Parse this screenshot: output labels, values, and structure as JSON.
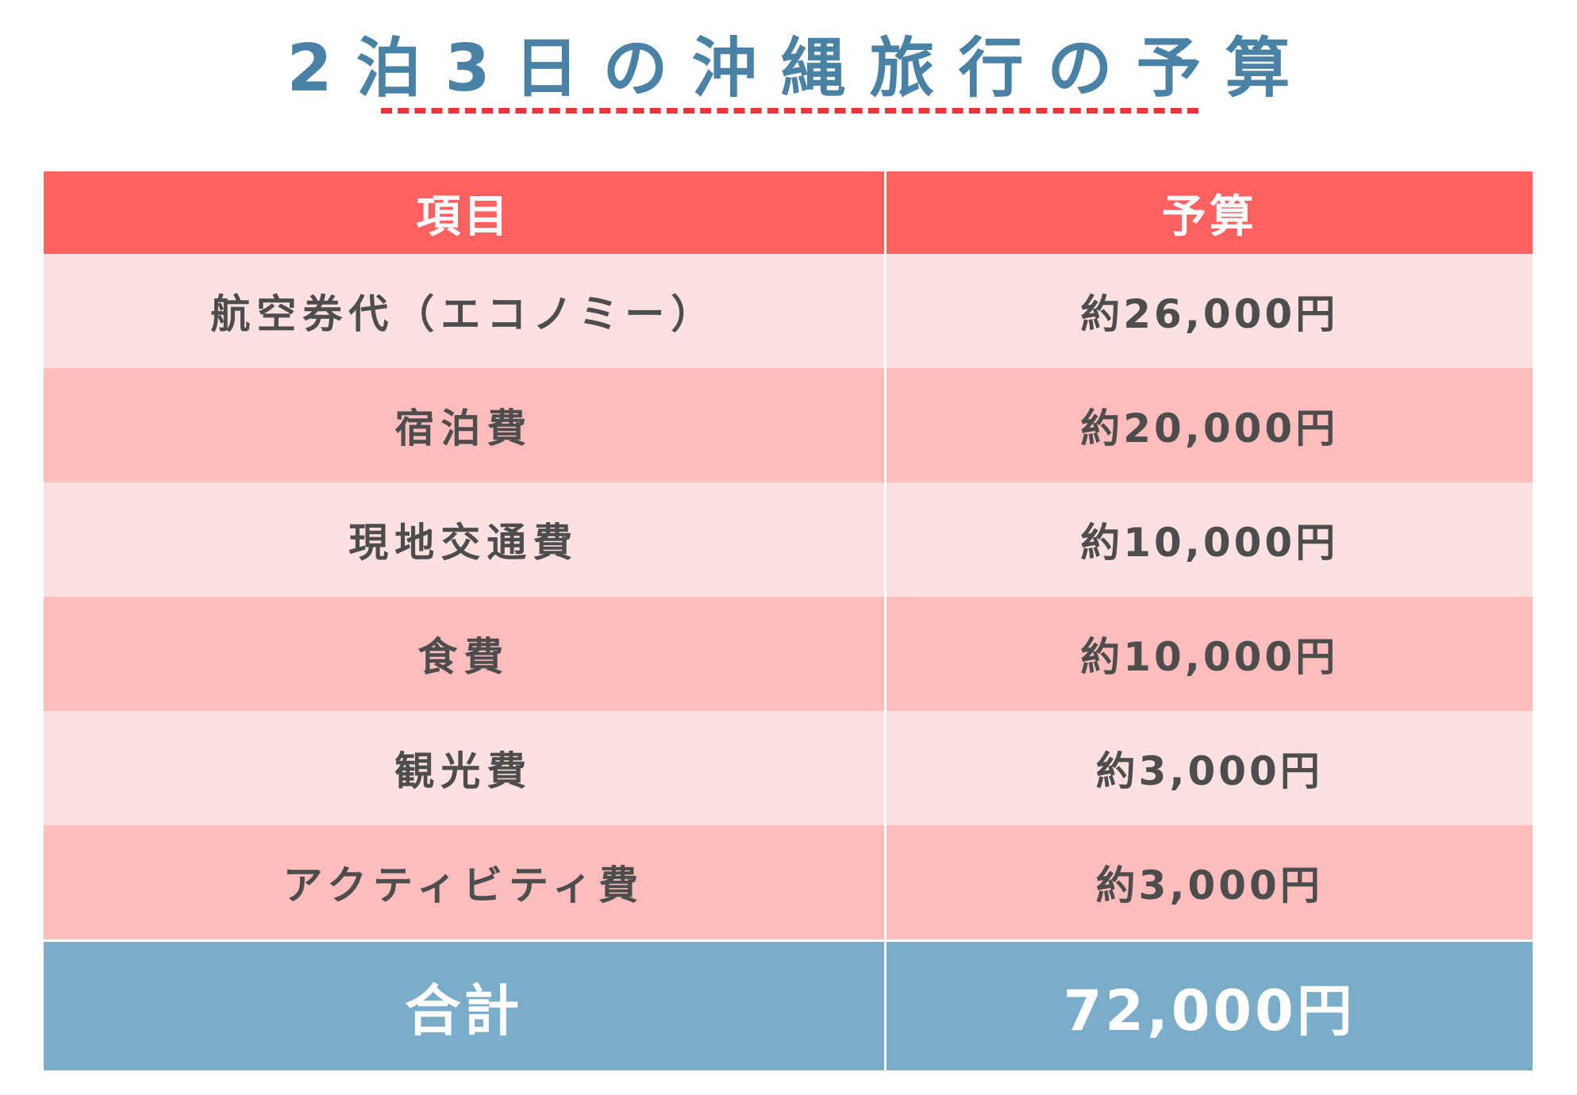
{
  "title": "2泊3日の沖縄旅行の予算",
  "table": {
    "headers": [
      "項目",
      "予算"
    ],
    "rows": [
      {
        "item": "航空券代（エコノミー）",
        "budget": "約26,000円"
      },
      {
        "item": "宿泊費",
        "budget": "約20,000円"
      },
      {
        "item": "現地交通費",
        "budget": "約10,000円"
      },
      {
        "item": "食費",
        "budget": "約10,000円"
      },
      {
        "item": "観光費",
        "budget": "約3,000円"
      },
      {
        "item": "アクティビティ費",
        "budget": "約3,000円"
      }
    ],
    "total": {
      "label": "合計",
      "value": "72,000円"
    }
  },
  "colors": {
    "title": "#4a82a6",
    "underline": "#e8363a",
    "header_bg": "#fe6160",
    "row_light": "#fde1e1",
    "row_dark": "#fcbdbc",
    "total_bg": "#7aadc9"
  }
}
